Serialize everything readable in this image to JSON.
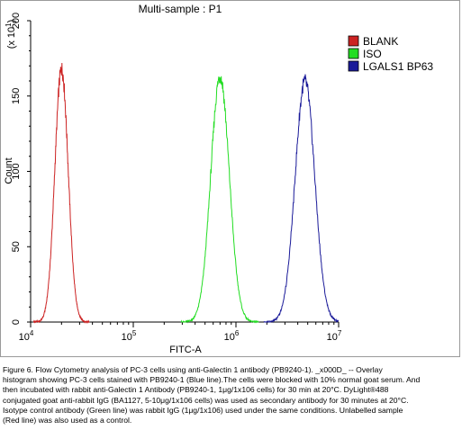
{
  "chart_data": {
    "type": "line",
    "title": "Multi-sample : P1",
    "xlabel": "FITC-A",
    "ylabel": "Count",
    "y_multiplier_label": "(x 10^1)",
    "x_scale": "log",
    "xlim": [
      10000,
      10000000
    ],
    "ylim": [
      0,
      200
    ],
    "x_ticks": [
      {
        "value": 10000,
        "base": "10",
        "exp": "4"
      },
      {
        "value": 100000,
        "base": "10",
        "exp": "5"
      },
      {
        "value": 1000000,
        "base": "10",
        "exp": "6"
      },
      {
        "value": 10000000,
        "base": "10",
        "exp": "7"
      }
    ],
    "y_ticks": [
      0,
      50,
      100,
      150,
      200
    ],
    "legend_position": "top-right",
    "series": [
      {
        "name": "BLANK",
        "color": "#cc2222",
        "peak_x": 20000,
        "peak_y": 168,
        "log_width": 0.065
      },
      {
        "name": "ISO",
        "color": "#22dd22",
        "peak_x": 700000,
        "peak_y": 163,
        "log_width": 0.09
      },
      {
        "name": "LGALS1 BP63",
        "color": "#1a1a99",
        "peak_x": 4700000,
        "peak_y": 160,
        "log_width": 0.095
      }
    ]
  },
  "caption": {
    "lines": [
      "Figure 6. Flow Cytometry analysis of PC-3 cells using anti-Galectin 1 antibody (PB9240-1). _x000D_ -- Overlay",
      "histogram showing PC-3 cells stained with PB9240-1 (Blue line).The cells were blocked with 10% normal goat serum. And",
      "then incubated with rabbit anti-Galectin 1 Antibody (PB9240-1, 1μg/1x106 cells) for 30 min at 20°C. DyLight®488",
      "conjugated goat anti-rabbit IgG (BA1127, 5-10μg/1x106 cells) was used as secondary antibody for 30 minutes at 20°C.",
      "Isotype control antibody (Green line) was rabbit IgG (1μg/1x106) used under the same conditions. Unlabelled sample",
      "(Red line) was also used as a control."
    ]
  }
}
